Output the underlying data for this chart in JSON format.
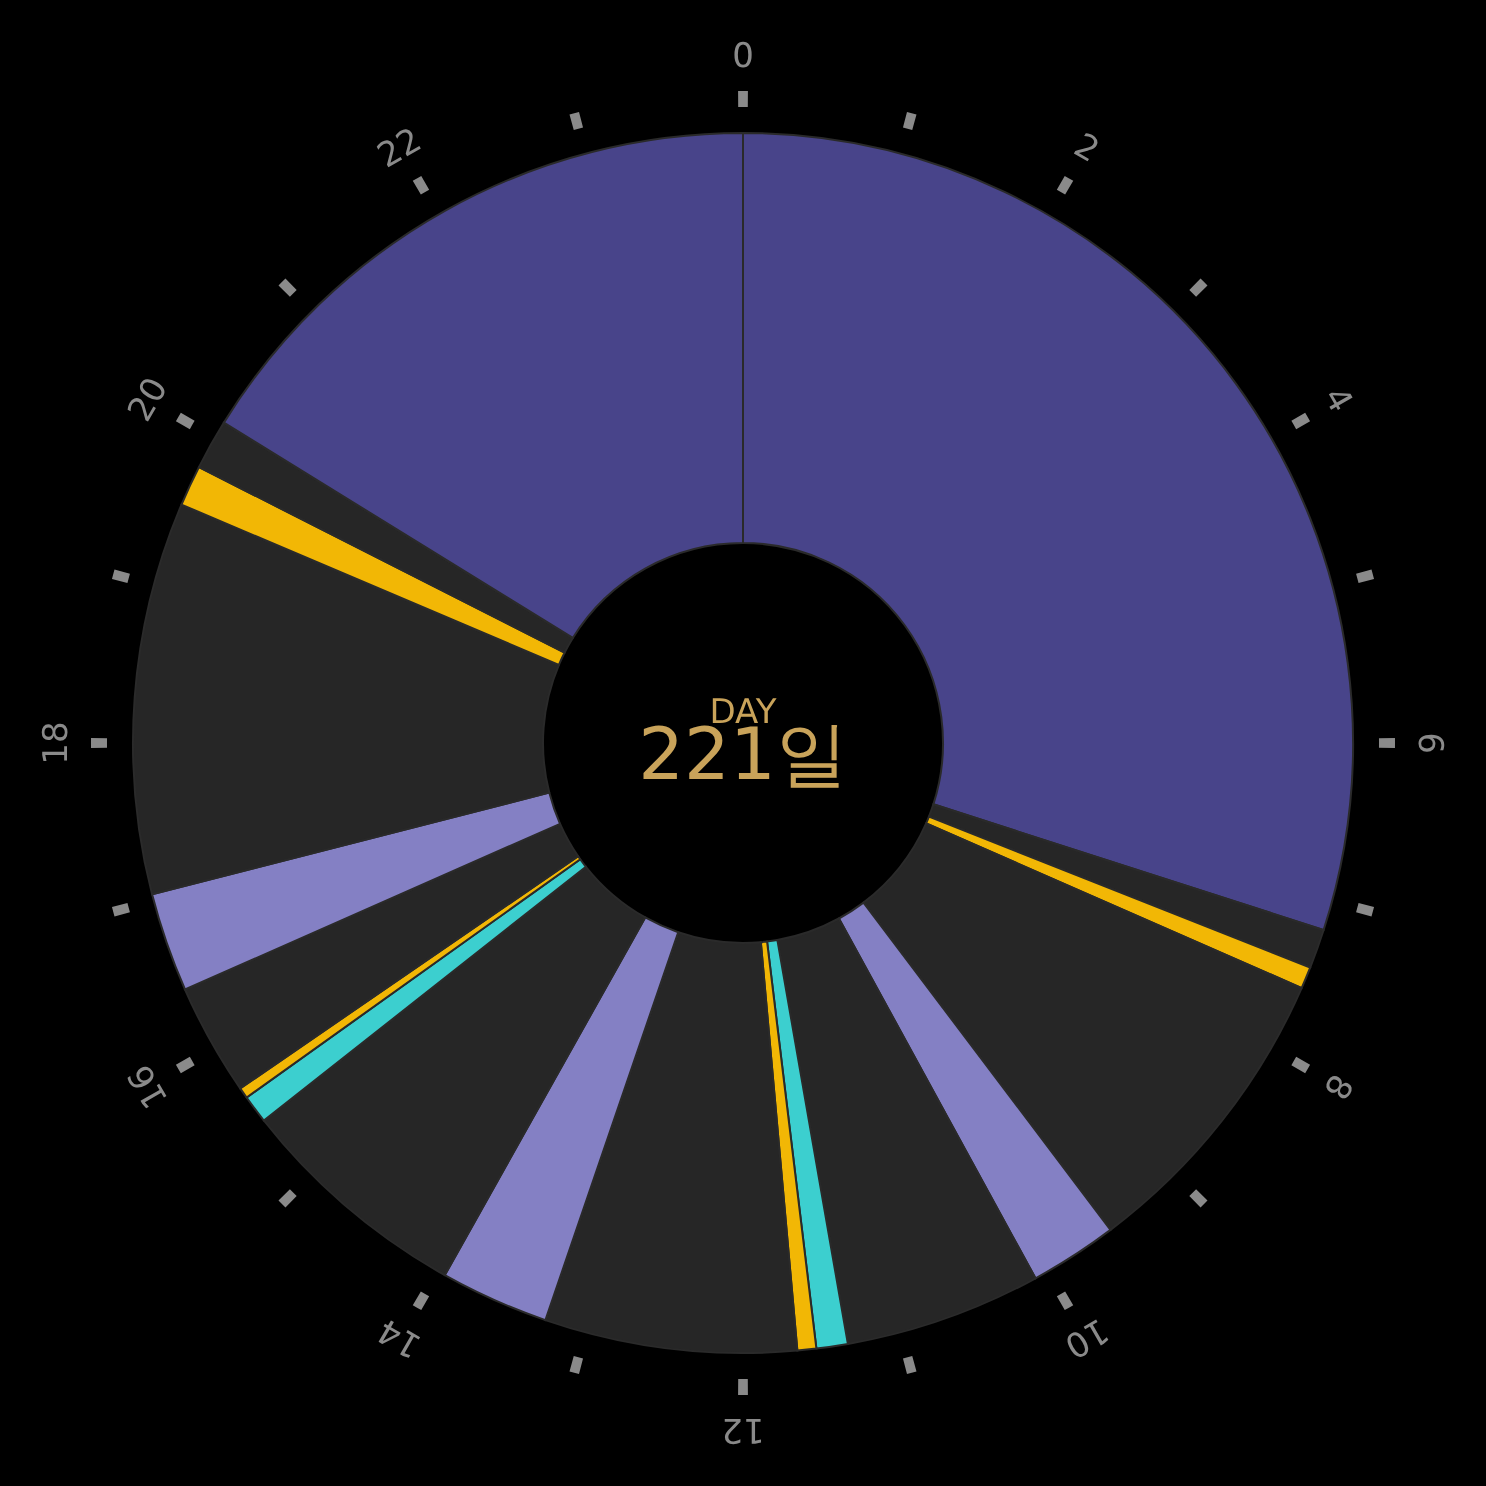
{
  "chart_data": {
    "type": "donut",
    "categories": [
      null,
      null,
      null,
      null,
      null,
      null,
      null,
      null,
      null,
      null,
      null,
      null,
      null,
      null,
      null,
      null,
      null,
      null,
      null
    ],
    "values": [
      29.96,
      1.04,
      0.58,
      8.13,
      2.33,
      5.21,
      0.83,
      0.5,
      6.67,
      2.88,
      6.25,
      0.75,
      0.29,
      2.96,
      2.63,
      10.38,
      1.08,
      1.33,
      16.2
    ],
    "colors": [
      "#48448a",
      "#262626",
      "#f2b705",
      "#262626",
      "#8480c4",
      "#262626",
      "#3ccfcf",
      "#f2b705",
      "#262626",
      "#8480c4",
      "#262626",
      "#3ccfcf",
      "#f2b705",
      "#262626",
      "#8480c4",
      "#262626",
      "#f2b705",
      "#262626",
      "#48448a"
    ],
    "annotations": [
      "DAY",
      "221일",
      "0",
      "2",
      "4",
      "6",
      "8",
      "10",
      "12",
      "14",
      "16",
      "18",
      "20",
      "22"
    ]
  }
}
